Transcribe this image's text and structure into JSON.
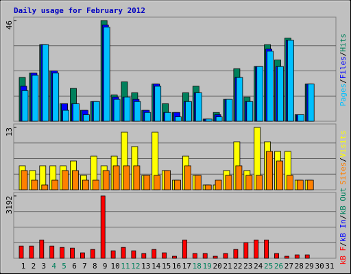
{
  "chart_data": [
    {
      "type": "bar",
      "title": "Daily usage for February 2012",
      "legend_separator": "/",
      "ylim": [
        0,
        46
      ],
      "yticks": [
        46
      ],
      "series": [
        {
          "name": "Hits",
          "color": "#00805c",
          "values": [
            20,
            22,
            35,
            23,
            8,
            15,
            5,
            9,
            46,
            12,
            18,
            13,
            5,
            17,
            8,
            4,
            13,
            16,
            1,
            4,
            10,
            24,
            11,
            25,
            35,
            28,
            38,
            3,
            17,
            null,
            null
          ]
        },
        {
          "name": "Files",
          "color": "#0000ff",
          "values": [
            16,
            22,
            35,
            23,
            8,
            8,
            5,
            9,
            44,
            11,
            11,
            10,
            5,
            17,
            4,
            4,
            9,
            13,
            1,
            3,
            10,
            20,
            9,
            25,
            33,
            25,
            37,
            3,
            17,
            null,
            null
          ]
        },
        {
          "name": "Pages",
          "color": "#00c0ff",
          "values": [
            14,
            21,
            35,
            22,
            5,
            8,
            3,
            9,
            43,
            10,
            11,
            9,
            4,
            16,
            4,
            2,
            9,
            13,
            1,
            2,
            10,
            20,
            9,
            25,
            32,
            25,
            37,
            3,
            17,
            null,
            null
          ]
        }
      ]
    },
    {
      "type": "bar",
      "legend_separator": "/",
      "ylim": [
        0,
        13
      ],
      "yticks": [
        13
      ],
      "series": [
        {
          "name": "Visits",
          "color": "#ffff00",
          "values": [
            5,
            4,
            5,
            5,
            5,
            6,
            3,
            7,
            5,
            7,
            12,
            9,
            3,
            12,
            4,
            2,
            7,
            3,
            1,
            1,
            4,
            10,
            4,
            13,
            10,
            8,
            8,
            2,
            2,
            null,
            null
          ]
        },
        {
          "name": "Sites",
          "color": "#ff8000",
          "values": [
            4,
            2,
            1,
            2,
            4,
            4,
            2,
            2,
            4,
            5,
            5,
            5,
            3,
            3,
            4,
            2,
            5,
            3,
            1,
            2,
            3,
            5,
            3,
            3,
            8,
            6,
            3,
            2,
            2,
            null,
            null
          ]
        }
      ]
    },
    {
      "type": "bar",
      "legend_separator": "/",
      "ylim": [
        0,
        3192
      ],
      "yticks": [
        3192
      ],
      "categories": [
        "1",
        "2",
        "3",
        "4",
        "5",
        "6",
        "7",
        "8",
        "9",
        "10",
        "11",
        "12",
        "13",
        "14",
        "15",
        "16",
        "17",
        "18",
        "19",
        "20",
        "21",
        "22",
        "23",
        "24",
        "25",
        "26",
        "27",
        "28",
        "29",
        "30",
        "31"
      ],
      "category_colors": [
        "#000000",
        "#000000",
        "#000000",
        "#00805c",
        "#00805c",
        "#000000",
        "#000000",
        "#000000",
        "#000000",
        "#000000",
        "#00805c",
        "#00805c",
        "#000000",
        "#000000",
        "#000000",
        "#000000",
        "#000000",
        "#00805c",
        "#00805c",
        "#000000",
        "#000000",
        "#000000",
        "#000000",
        "#000000",
        "#00805c",
        "#00805c",
        "#000000",
        "#000000",
        "#000000",
        "#000000",
        "#000000"
      ],
      "series": [
        {
          "name": "kB F",
          "color": "#ff0000",
          "values": [
            625,
            625,
            937,
            625,
            555,
            520,
            278,
            451,
            3192,
            382,
            555,
            382,
            243,
            451,
            278,
            104,
            937,
            243,
            243,
            104,
            243,
            451,
            798,
            937,
            937,
            243,
            104,
            173,
            173,
            null,
            null
          ]
        }
      ],
      "legend": [
        {
          "name": "kB F",
          "color": "#ff0000"
        },
        {
          "name": "kB In",
          "color": "#0000ff"
        },
        {
          "name": "kB Out",
          "color": "#00805c"
        }
      ]
    }
  ]
}
